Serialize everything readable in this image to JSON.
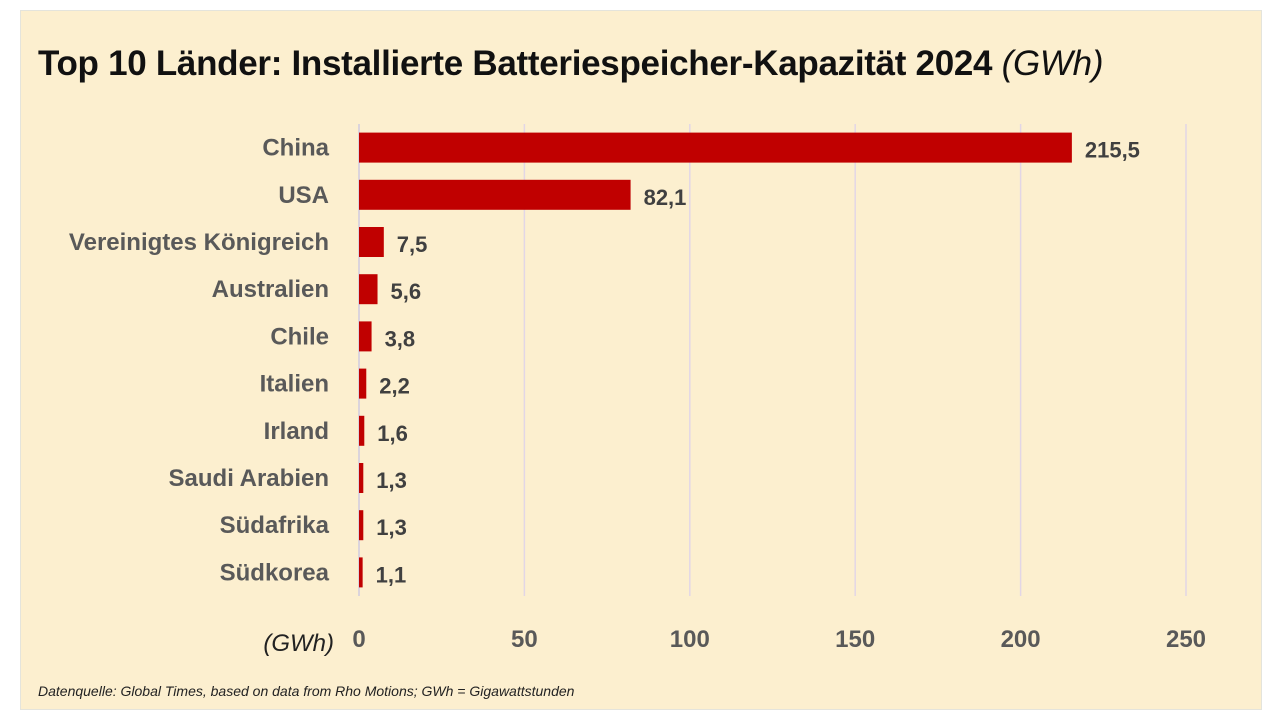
{
  "chart_data": {
    "type": "bar",
    "orientation": "horizontal",
    "title": "Top 10 Länder: Installierte Batteriespeicher-Kapazität 2024",
    "title_unit": "(GWh)",
    "categories": [
      "China",
      "USA",
      "Vereinigtes Königreich",
      "Australien",
      "Chile",
      "Italien",
      "Irland",
      "Saudi Arabien",
      "Südafrika",
      "Südkorea"
    ],
    "values": [
      215.5,
      82.1,
      7.5,
      5.6,
      3.8,
      2.2,
      1.6,
      1.3,
      1.3,
      1.1
    ],
    "value_labels": [
      "215,5",
      "82,1",
      "7,5",
      "5,6",
      "3,8",
      "2,2",
      "1,6",
      "1,3",
      "1,3",
      "1,1"
    ],
    "xlabel": "(GWh)",
    "ylabel": "",
    "xlim": [
      0,
      250
    ],
    "xticks": [
      0,
      50,
      100,
      150,
      200,
      250
    ],
    "grid": true,
    "bar_color": "#c00000",
    "source": "Datenquelle: Global Times, based on data from Rho Motions;  GWh = Gigawattstunden"
  }
}
